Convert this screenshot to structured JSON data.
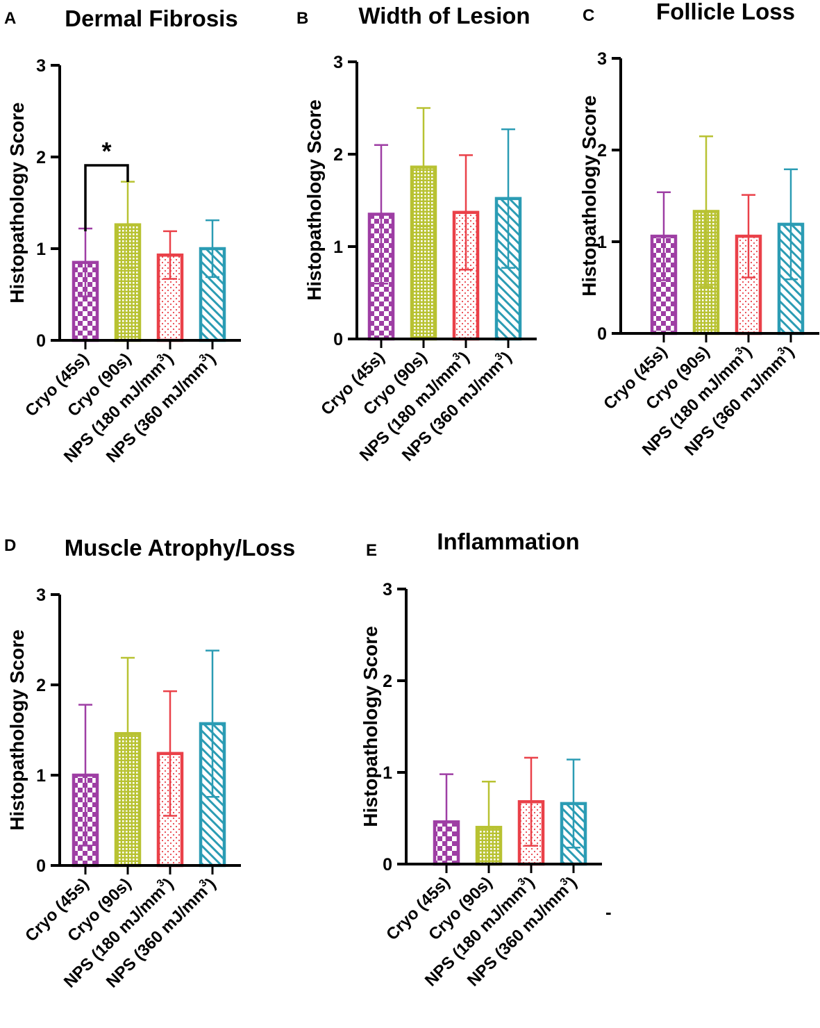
{
  "colors": {
    "cryo45": "#9e3ea4",
    "cryo90": "#b8c232",
    "nps180": "#ea4149",
    "nps360": "#2b9cb4",
    "axis": "#000000"
  },
  "stray_mark": "-",
  "chart_data": [
    {
      "type": "bar",
      "panel": "A",
      "title": "Dermal Fibrosis",
      "xlabel": "",
      "ylabel": "Histopathology Score",
      "ylim": [
        0,
        3
      ],
      "yticks": [
        "0",
        "1",
        "2",
        "3"
      ],
      "categories": [
        {
          "main": "Cryo (45s)",
          "sup": "",
          "tail": ""
        },
        {
          "main": "Cryo (90s)",
          "sup": "",
          "tail": ""
        },
        {
          "main": "NPS (180 mJ/mm",
          "sup": "3",
          "tail": ")"
        },
        {
          "main": "NPS (360 mJ/mm",
          "sup": "3",
          "tail": ")"
        }
      ],
      "values": [
        0.85,
        1.26,
        0.93,
        1.0
      ],
      "error": [
        0.37,
        0.47,
        0.26,
        0.31
      ],
      "patterns": [
        "checker",
        "grid",
        "dots",
        "hatch"
      ],
      "significance": {
        "from": 0,
        "to": 1,
        "y": 1.72,
        "label": "*"
      }
    },
    {
      "type": "bar",
      "panel": "B",
      "title": "Width of Lesion",
      "xlabel": "",
      "ylabel": "Histopathology Score",
      "ylim": [
        0,
        3
      ],
      "yticks": [
        "0",
        "1",
        "2",
        "3"
      ],
      "categories": [
        {
          "main": "Cryo (45s)",
          "sup": "",
          "tail": ""
        },
        {
          "main": "Cryo (90s)",
          "sup": "",
          "tail": ""
        },
        {
          "main": "NPS (180 mJ/mm",
          "sup": "3",
          "tail": ")"
        },
        {
          "main": "NPS (360 mJ/mm",
          "sup": "3",
          "tail": ")"
        }
      ],
      "values": [
        1.35,
        1.86,
        1.37,
        1.52
      ],
      "error": [
        0.75,
        0.64,
        0.62,
        0.75
      ],
      "patterns": [
        "checker",
        "grid",
        "dots",
        "hatch"
      ]
    },
    {
      "type": "bar",
      "panel": "C",
      "title": "Follicle Loss",
      "xlabel": "",
      "ylabel": "Histopathology Score",
      "ylim": [
        0,
        3
      ],
      "yticks": [
        "0",
        "1",
        "2",
        "3"
      ],
      "categories": [
        {
          "main": "Cryo (45s)",
          "sup": "",
          "tail": ""
        },
        {
          "main": "Cryo (90s)",
          "sup": "",
          "tail": ""
        },
        {
          "main": "NPS (180 mJ/mm",
          "sup": "3",
          "tail": ")"
        },
        {
          "main": "NPS (360 mJ/mm",
          "sup": "3",
          "tail": ")"
        }
      ],
      "values": [
        1.06,
        1.33,
        1.06,
        1.19
      ],
      "error": [
        0.48,
        0.82,
        0.45,
        0.6
      ],
      "patterns": [
        "checker",
        "grid",
        "dots",
        "hatch"
      ]
    },
    {
      "type": "bar",
      "panel": "D",
      "title": "Muscle Atrophy/Loss",
      "xlabel": "",
      "ylabel": "Histopathology Score",
      "ylim": [
        0,
        3
      ],
      "yticks": [
        "0",
        "1",
        "2",
        "3"
      ],
      "categories": [
        {
          "main": "Cryo (45s)",
          "sup": "",
          "tail": ""
        },
        {
          "main": "Cryo (90s)",
          "sup": "",
          "tail": ""
        },
        {
          "main": "NPS (180 mJ/mm",
          "sup": "3",
          "tail": ")"
        },
        {
          "main": "NPS (360 mJ/mm",
          "sup": "3",
          "tail": ")"
        }
      ],
      "values": [
        1.0,
        1.46,
        1.24,
        1.57
      ],
      "error": [
        0.78,
        0.84,
        0.69,
        0.81
      ],
      "patterns": [
        "checker",
        "grid",
        "dots",
        "hatch"
      ]
    },
    {
      "type": "bar",
      "panel": "E",
      "title": "Inflammation",
      "xlabel": "",
      "ylabel": "Histopathology Score",
      "ylim": [
        0,
        3
      ],
      "yticks": [
        "0",
        "1",
        "2",
        "3"
      ],
      "categories": [
        {
          "main": "Cryo (45s)",
          "sup": "",
          "tail": ""
        },
        {
          "main": "Cryo (90s)",
          "sup": "",
          "tail": ""
        },
        {
          "main": "NPS (180 mJ/mm",
          "sup": "3",
          "tail": ")"
        },
        {
          "main": "NPS (360 mJ/mm",
          "sup": "3",
          "tail": ")"
        }
      ],
      "values": [
        0.46,
        0.4,
        0.68,
        0.66
      ],
      "error": [
        0.52,
        0.5,
        0.48,
        0.48
      ],
      "patterns": [
        "checker",
        "grid",
        "dots",
        "hatch"
      ]
    }
  ]
}
